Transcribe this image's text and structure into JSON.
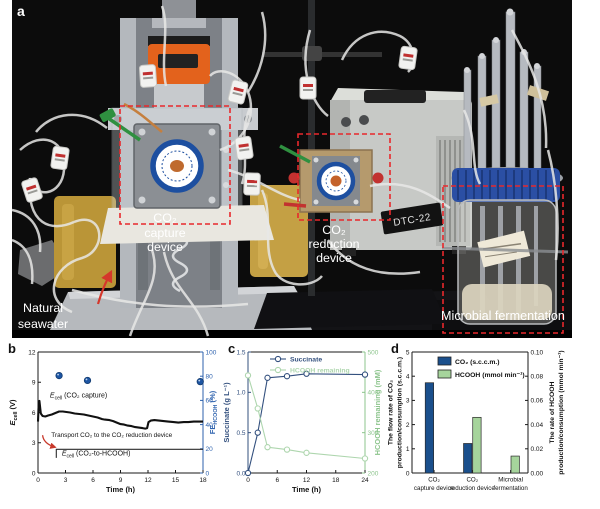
{
  "panels": {
    "a": "a",
    "b": "b",
    "c": "c",
    "d": "d"
  },
  "photo": {
    "labels": {
      "co2_capture": [
        "CO₂",
        "capture",
        "device"
      ],
      "natural_seawater": [
        "Natural",
        "seawater"
      ],
      "co2_reduction": [
        "CO₂",
        "reduction",
        "device"
      ],
      "microbial_fermentation": "Microbial fermentation",
      "device_model": "DTC-22"
    }
  },
  "colors": {
    "highlight_red": "#e8282c",
    "deep_blue": "#1a4f8c",
    "pale_green": "#a6d49c",
    "fe_blue": "#2e62ae"
  },
  "chart_data": [
    {
      "panel": "b",
      "type": "line",
      "xlabel": "Time (h)",
      "xlim": [
        0,
        18
      ],
      "x_ticks": [
        0,
        3,
        6,
        9,
        12,
        15,
        18
      ],
      "left_axis": {
        "label": "*E*_{cell} (V)",
        "lim": [
          0,
          12
        ],
        "ticks": [
          0,
          3,
          6,
          9,
          12
        ],
        "color": "#1a1a1a"
      },
      "right_axis": {
        "label": "FE_{HCOOH} (%)",
        "lim": [
          0,
          100
        ],
        "ticks": [
          0,
          20,
          40,
          60,
          80,
          100
        ],
        "color": "#2e62ae"
      },
      "series": [
        {
          "name": "E_cell (CO2 capture)",
          "axis": "left",
          "color": "#111111",
          "width": 2.1,
          "x": [
            0,
            0.06,
            0.15,
            0.3,
            0.5,
            0.8,
            1.1,
            1.5,
            1.9,
            2.3,
            2.7,
            3.1,
            3.5,
            4,
            4.5,
            5,
            5.5,
            6,
            6.5,
            7,
            7.3,
            7.8,
            8.2,
            8.6,
            9,
            9.4,
            9.8,
            10.2,
            10.6,
            11,
            11.4,
            11.7,
            11.9,
            12.05,
            12.3,
            12.7,
            13.2,
            13.7,
            14.2,
            14.8,
            15.3,
            15.9,
            16.4,
            17,
            17.5,
            18
          ],
          "y": [
            5.1,
            6.4,
            7.15,
            5.9,
            5.65,
            5.6,
            5.7,
            5.8,
            5.95,
            6.1,
            6.1,
            6.05,
            6.0,
            5.9,
            5.85,
            5.8,
            5.7,
            5.6,
            5.5,
            5.35,
            5.3,
            5.25,
            5.15,
            5.0,
            4.85,
            4.8,
            4.7,
            4.65,
            4.55,
            4.5,
            4.45,
            4.4,
            4.45,
            5.05,
            5.2,
            5.25,
            5.2,
            5.15,
            5.1,
            5.05,
            5.0,
            5.05,
            5.05,
            5.1,
            5.1,
            5.1
          ]
        },
        {
          "name": "E_cell (CO2-to-HCOOH)",
          "axis": "left",
          "color": "#2b2b2b",
          "width": 1.1,
          "x": [
            2,
            2,
            18
          ],
          "y": [
            1.5,
            2.35,
            2.35
          ]
        },
        {
          "name": "FE_HCOOH",
          "axis": "right",
          "color": "#1d55a3",
          "marker": "circle",
          "line": false,
          "x": [
            2.3,
            5.4,
            17.7
          ],
          "y": [
            80.5,
            76.5,
            75.5
          ]
        }
      ],
      "annotations": [
        {
          "text": "*E*_{cell} (CO₂ capture)",
          "x": 1.3,
          "y": 7.5,
          "size": 7
        },
        {
          "text": "Transport CO₂ to the CO₂ reduction device",
          "x": 1.45,
          "y": 3.55,
          "size": 6.4
        },
        {
          "text": "*E*_{cell} (CO₂-to-HCOOH)",
          "x": 2.6,
          "y": 1.75,
          "size": 7
        }
      ],
      "arrow": {
        "x1": 0.5,
        "y1": 3.75,
        "cx": 0.6,
        "cy": 2.9,
        "x2": 1.9,
        "y2": 2.55,
        "color": "#c8392b"
      }
    },
    {
      "panel": "c",
      "type": "line",
      "xlabel": "Time (h)",
      "xlim": [
        0,
        24
      ],
      "x_ticks": [
        0,
        6,
        12,
        18,
        24
      ],
      "left_axis": {
        "label": "Succinate (g L⁻¹)",
        "lim": [
          0,
          1.5
        ],
        "ticks": [
          "0.0",
          "0.5",
          "1.0",
          "1.5"
        ],
        "color": "#33507e"
      },
      "right_axis": {
        "label": "HCOOH remaining (mM)",
        "lim": [
          200,
          500
        ],
        "ticks": [
          200,
          300,
          400,
          500
        ],
        "color": "#8cc48c"
      },
      "series": [
        {
          "name": "Succinate",
          "axis": "left",
          "color": "#33507e",
          "marker": "open",
          "width": 1.1,
          "x": [
            0,
            2,
            4,
            8,
            12,
            24
          ],
          "y": [
            0.0,
            0.5,
            1.18,
            1.2,
            1.23,
            1.22
          ]
        },
        {
          "name": "HCOOH remaining",
          "axis": "right",
          "color": "#aed6ae",
          "marker": "open",
          "width": 1.1,
          "x": [
            0,
            2,
            4,
            8,
            12,
            24
          ],
          "y": [
            442,
            360,
            264,
            258,
            250,
            236
          ]
        }
      ],
      "legend": [
        {
          "label": "Succinate",
          "color": "#33507e"
        },
        {
          "label": "HCOOH remaining",
          "color": "#aed6ae"
        }
      ]
    },
    {
      "panel": "d",
      "type": "bar",
      "categories": [
        [
          "CO₂",
          "capture device"
        ],
        [
          "CO₂",
          "reduction device"
        ],
        [
          "Microbial",
          "fermentation"
        ]
      ],
      "left_axis": {
        "label": [
          "The flow rate of CO₂",
          "production/consumption (s.c.c.m.)"
        ],
        "lim": [
          0,
          5
        ],
        "ticks": [
          0,
          1,
          2,
          3,
          4,
          5
        ],
        "color": "#1a1a1a"
      },
      "right_axis": {
        "label": [
          "The rate of HCOOH",
          "production/consumption (mmol min⁻¹)"
        ],
        "lim": [
          0,
          0.1
        ],
        "ticks": [
          "0.00",
          "0.02",
          "0.04",
          "0.06",
          "0.08",
          "0.10"
        ],
        "color": "#1a1a1a"
      },
      "series": [
        {
          "name": "CO₂ (s.c.c.m.)",
          "axis": "left",
          "color": "#1a4f8c",
          "values": [
            3.73,
            1.22,
            null
          ]
        },
        {
          "name": "HCOOH (mmol min⁻¹)",
          "axis": "right",
          "color": "#a6d49c",
          "values": [
            null,
            0.046,
            0.014
          ]
        }
      ],
      "legend": [
        {
          "label": "CO₂ (s.c.c.m.)",
          "color": "#1a4f8c"
        },
        {
          "label": "HCOOH (mmol min⁻¹)",
          "color": "#a6d49c"
        }
      ]
    }
  ]
}
